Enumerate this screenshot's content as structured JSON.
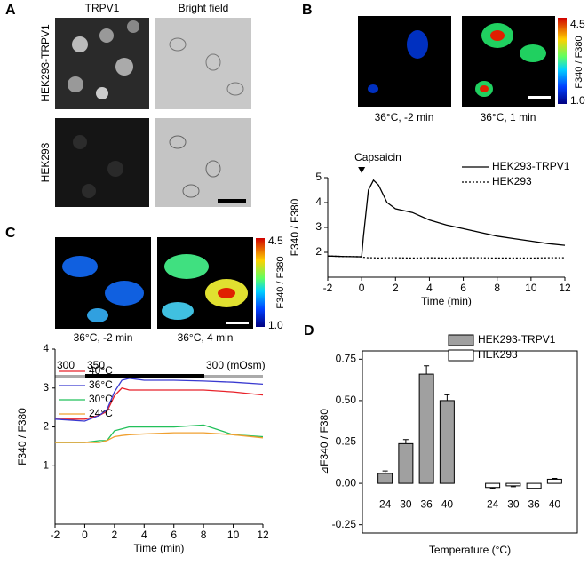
{
  "panel_labels": [
    "A",
    "B",
    "C",
    "D"
  ],
  "panel_a": {
    "columns": [
      "TRPV1",
      "Bright field"
    ],
    "rows": [
      "HEK293-TRPV1",
      "HEK293"
    ]
  },
  "panel_b_images": {
    "captions": [
      "36°C,  -2 min",
      "36°C,  1 min"
    ],
    "colorbar": {
      "max": "4.5",
      "min": "1.0",
      "label": "F340 / F380"
    }
  },
  "panel_c_images": {
    "captions": [
      "36°C,  -2 min",
      "36°C,  4 min"
    ],
    "colorbar": {
      "max": "4.5",
      "min": "1.0",
      "label": "F340 / F380"
    }
  },
  "osmolarity": {
    "labels": [
      "300",
      "350",
      "300 (mOsm)"
    ]
  },
  "chart_data": [
    {
      "type": "line",
      "annotation": "Capsaicin",
      "x_label": "Time (min)",
      "y_label": "F340 / F380",
      "x": [
        -2,
        -1,
        0,
        0.1,
        0.4,
        0.7,
        1,
        1.5,
        2,
        3,
        4,
        5,
        6,
        7,
        8,
        9,
        10,
        11,
        12
      ],
      "series": [
        {
          "name": "HEK293-TRPV1",
          "color": "#000000",
          "line_style": "solid",
          "values": [
            1.85,
            1.83,
            1.82,
            2.6,
            4.5,
            4.9,
            4.7,
            4.0,
            3.75,
            3.6,
            3.3,
            3.1,
            2.95,
            2.8,
            2.65,
            2.55,
            2.45,
            2.35,
            2.28
          ]
        },
        {
          "name": "HEK293",
          "color": "#000000",
          "line_style": "dotted",
          "values": [
            1.85,
            1.83,
            1.82,
            1.8,
            1.78,
            1.78,
            1.77,
            1.78,
            1.78,
            1.77,
            1.78,
            1.77,
            1.78,
            1.78,
            1.77,
            1.77,
            1.77,
            1.78,
            1.78
          ]
        }
      ],
      "xlim": [
        -2,
        12
      ],
      "xticks": [
        -2,
        0,
        2,
        4,
        6,
        8,
        10,
        12
      ],
      "ylim": [
        1,
        5
      ],
      "yticks": [
        2,
        3,
        4,
        5
      ]
    },
    {
      "type": "line",
      "x_label": "Time (min)",
      "y_label": "F340 / F380",
      "x": [
        -2,
        0,
        1,
        1.5,
        2,
        2.5,
        3,
        4,
        6,
        8,
        10,
        12
      ],
      "series": [
        {
          "name": "40°C",
          "color": "#e8222a",
          "line_style": "solid",
          "values": [
            2.2,
            2.2,
            2.3,
            2.4,
            2.8,
            3.0,
            2.95,
            2.95,
            2.95,
            2.95,
            2.9,
            2.82
          ]
        },
        {
          "name": "36°C",
          "color": "#3a3ad0",
          "line_style": "solid",
          "values": [
            2.2,
            2.15,
            2.3,
            2.45,
            2.9,
            3.2,
            3.25,
            3.2,
            3.2,
            3.18,
            3.15,
            3.1
          ]
        },
        {
          "name": "30°C",
          "color": "#22c05a",
          "line_style": "solid",
          "values": [
            1.6,
            1.6,
            1.65,
            1.65,
            1.9,
            1.95,
            2.0,
            2.0,
            2.0,
            2.05,
            1.8,
            1.75
          ]
        },
        {
          "name": "24°C",
          "color": "#f0a030",
          "line_style": "solid",
          "values": [
            1.6,
            1.6,
            1.6,
            1.65,
            1.75,
            1.78,
            1.8,
            1.82,
            1.85,
            1.85,
            1.8,
            1.72
          ]
        }
      ],
      "xlim": [
        -2,
        12
      ],
      "xticks": [
        -2,
        0,
        2,
        4,
        6,
        8,
        10,
        12
      ],
      "ylim": [
        -0.5,
        4
      ],
      "yticks": [
        1,
        2,
        3,
        4
      ]
    },
    {
      "type": "bar",
      "x_label": "Temperature (°C)",
      "y_label": "⊿F340 / F380",
      "categories": [
        "24",
        "30",
        "36",
        "40"
      ],
      "series": [
        {
          "name": "HEK293-TRPV1",
          "color": "#a0a0a0",
          "values": [
            0.06,
            0.24,
            0.66,
            0.5
          ],
          "errors": [
            0.015,
            0.025,
            0.05,
            0.035
          ]
        },
        {
          "name": "HEK293",
          "color": "#ffffff",
          "values": [
            -0.025,
            -0.015,
            -0.03,
            0.025
          ],
          "errors": [
            0.005,
            0.005,
            0.003,
            0.005
          ]
        }
      ],
      "ylim": [
        -0.3,
        0.8
      ],
      "yticks": [
        -0.25,
        {
          "value": 0,
          "label": "0.00"
        },
        0.25,
        {
          "value": 0.5,
          "label": "0.50"
        },
        {
          "value": 0.75,
          "label": "0.75"
        }
      ]
    }
  ]
}
